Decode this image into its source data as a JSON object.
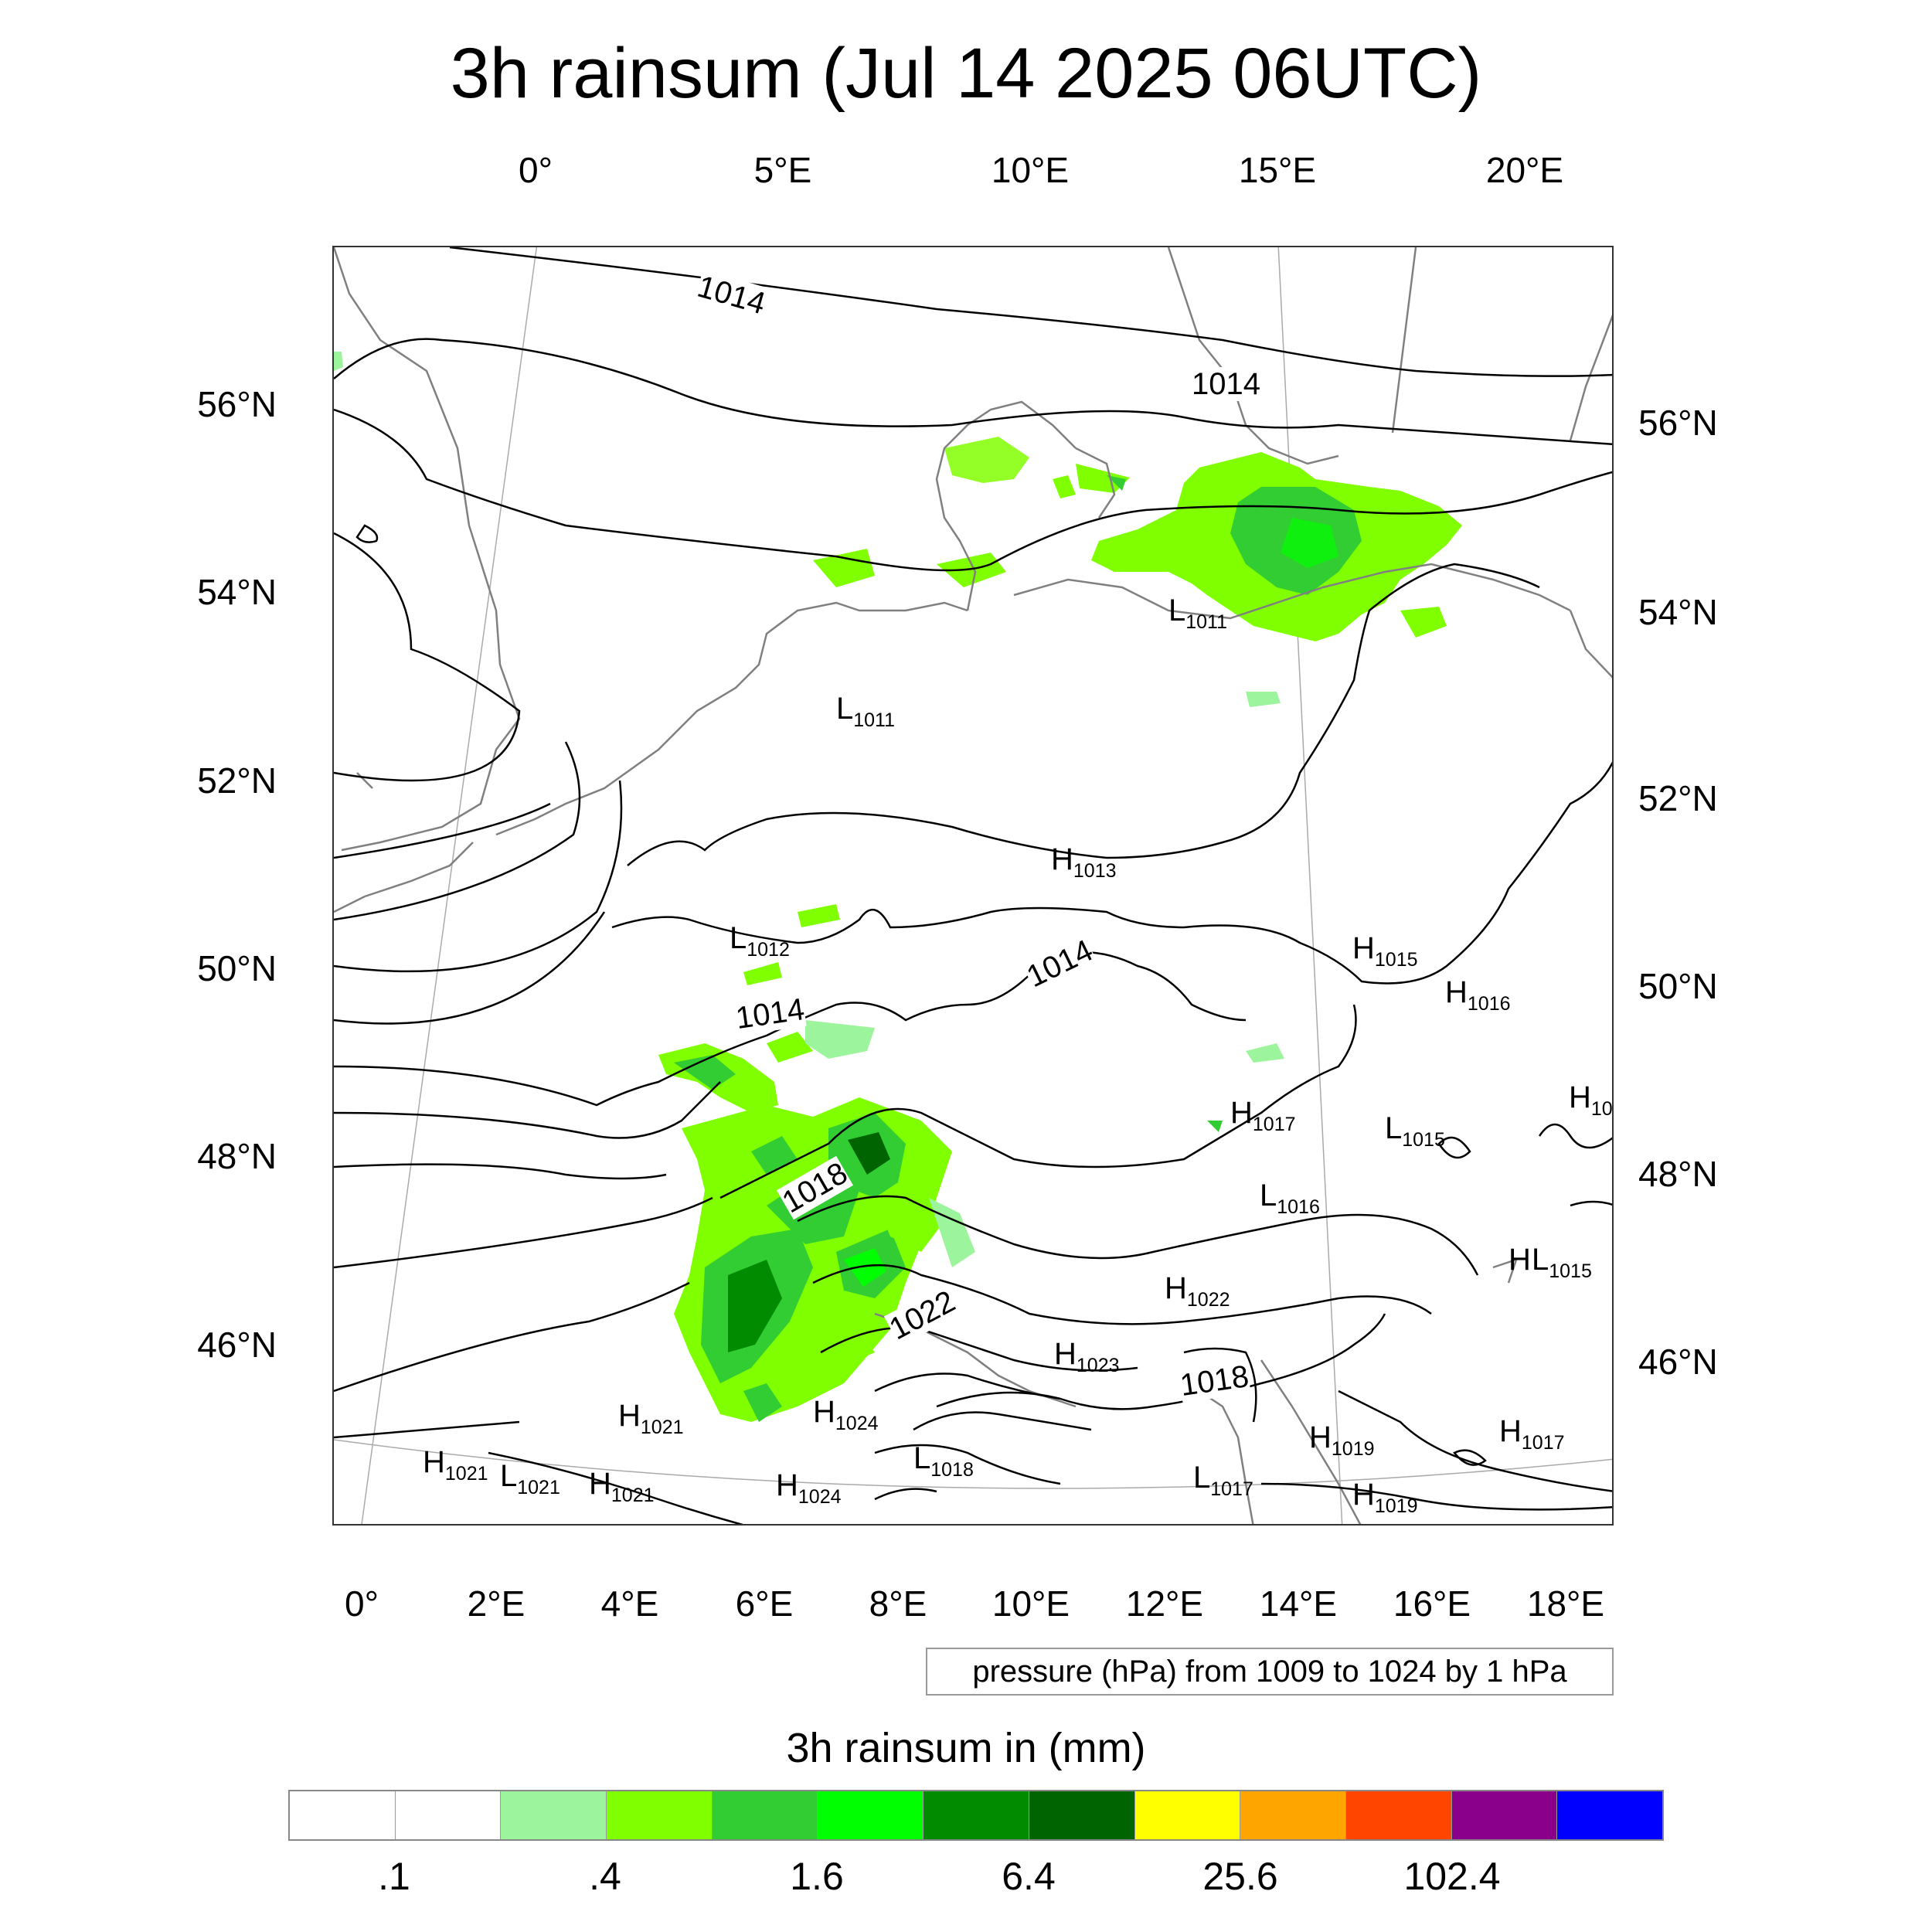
{
  "title": "3h rainsum (Jul 14 2025 06UTC)",
  "top_lon_labels": [
    "0°",
    "5°E",
    "10°E",
    "15°E",
    "20°E"
  ],
  "bottom_lon_labels": [
    "0°",
    "2°E",
    "4°E",
    "6°E",
    "8°E",
    "10°E",
    "12°E",
    "14°E",
    "16°E",
    "18°E"
  ],
  "left_lat_labels": [
    "56°N",
    "54°N",
    "52°N",
    "50°N",
    "48°N",
    "46°N"
  ],
  "right_lat_labels": [
    "56°N",
    "54°N",
    "52°N",
    "50°N",
    "48°N",
    "46°N"
  ],
  "contour_labels": [
    "1014",
    "1014",
    "1014",
    "1014",
    "1018",
    "1022",
    "1018"
  ],
  "pressure_centers": [
    {
      "type": "L",
      "value": "1011"
    },
    {
      "type": "L",
      "value": "1011"
    },
    {
      "type": "H",
      "value": "1013"
    },
    {
      "type": "L",
      "value": "1012"
    },
    {
      "type": "H",
      "value": "1015"
    },
    {
      "type": "H",
      "value": "1016"
    },
    {
      "type": "H",
      "value": "10"
    },
    {
      "type": "H",
      "value": "1017"
    },
    {
      "type": "L",
      "value": "1015"
    },
    {
      "type": "L",
      "value": "1016"
    },
    {
      "type": "H",
      "value": "1022"
    },
    {
      "type": "H",
      "value": ""
    },
    {
      "type": "L",
      "value": "1015"
    },
    {
      "type": "H",
      "value": "1023"
    },
    {
      "type": "H",
      "value": "1024"
    },
    {
      "type": "H",
      "value": "1021"
    },
    {
      "type": "H",
      "value": "1021"
    },
    {
      "type": "L",
      "value": "1021"
    },
    {
      "type": "H",
      "value": "1021"
    },
    {
      "type": "L",
      "value": "1018"
    },
    {
      "type": "H",
      "value": "1024"
    },
    {
      "type": "H",
      "value": "1019"
    },
    {
      "type": "H",
      "value": "1017"
    },
    {
      "type": "L",
      "value": "1017"
    },
    {
      "type": "H",
      "value": "1019"
    }
  ],
  "pressure_note": "pressure (hPa) from 1009 to 1024 by 1 hPa",
  "colorbar": {
    "title": "3h rainsum in (mm)",
    "colors": [
      "#ffffff",
      "#ffffff",
      "#9cf59c",
      "#80ff00",
      "#32cd32",
      "#00ff00",
      "#008b00",
      "#006400",
      "#ffff00",
      "#ffa500",
      "#ff4500",
      "#8b008b",
      "#0000ff"
    ],
    "labels": [
      ".1",
      ".4",
      "1.6",
      "6.4",
      "25.6",
      "102.4"
    ]
  },
  "colors": {
    "contour": "#000000",
    "coast": "#808080",
    "grid": "#aaaaaa",
    "rain_light": "#9cf59c",
    "rain_lime": "#80ff00",
    "rain_green": "#32cd32",
    "rain_bright": "#00ff00",
    "rain_dark": "#008b00",
    "rain_darkest": "#006400"
  }
}
